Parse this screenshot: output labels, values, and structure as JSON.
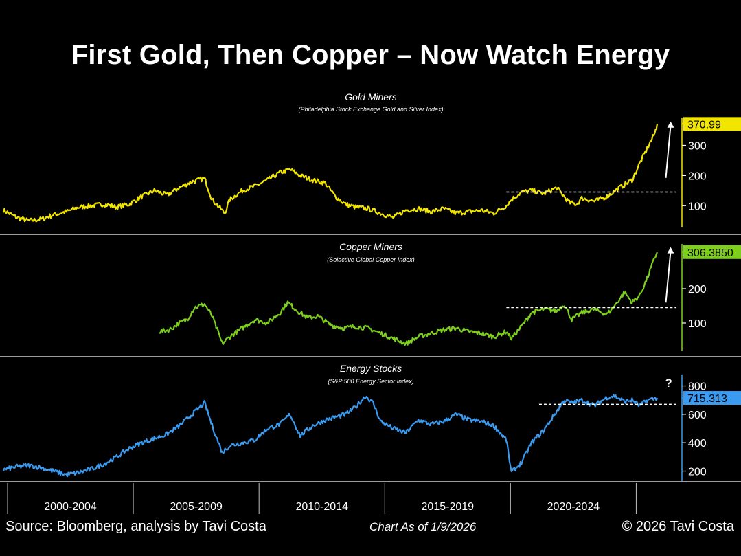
{
  "title": "First Gold, Then Copper – Now Watch Energy",
  "footer": {
    "source": "Source: Bloomberg, analysis by Tavi Costa",
    "as_of": "Chart As of 1/9/2026",
    "copyright": "© 2026 Tavi Costa"
  },
  "x_axis_labels": [
    "2000-2004",
    "2005-2009",
    "2010-2014",
    "2015-2019",
    "2020-2024"
  ],
  "colors": {
    "background": "#000000",
    "gold": "#f2e600",
    "copper": "#7ccf1a",
    "energy": "#3a9bf0",
    "dash": "#ffffff",
    "axis": "#ffffff"
  },
  "chart_data": [
    {
      "type": "line",
      "title": "Gold Miners",
      "subtitle": "(Philadelphia Stock Exchange Gold and Silver Index)",
      "ylim": [
        30,
        390
      ],
      "yticks": [
        100,
        200,
        300
      ],
      "last_value_label": "370.99",
      "last_value": 370.99,
      "reference_level": 145,
      "reference_start_year": 2020.0,
      "annotation": "up-arrow",
      "series": [
        {
          "name": "Gold Miners",
          "x": [
            2000,
            2000.5,
            2001,
            2001.5,
            2002,
            2002.5,
            2003,
            2003.5,
            2004,
            2004.5,
            2005,
            2005.5,
            2006,
            2006.5,
            2007,
            2007.5,
            2008,
            2008.3,
            2008.8,
            2009,
            2009.5,
            2010,
            2010.5,
            2011,
            2011.4,
            2011.8,
            2012.3,
            2012.8,
            2013.2,
            2013.6,
            2014,
            2014.5,
            2015,
            2015.5,
            2016,
            2016.5,
            2017,
            2017.5,
            2018,
            2018.5,
            2019,
            2019.5,
            2020,
            2020.2,
            2020.6,
            2021,
            2021.5,
            2022,
            2022.5,
            2022.8,
            2023,
            2023.5,
            2024,
            2024.5,
            2025,
            2025.3,
            2025.6,
            2025.9,
            2026
          ],
          "values": [
            85,
            62,
            50,
            55,
            70,
            80,
            95,
            100,
            105,
            95,
            105,
            130,
            150,
            135,
            160,
            180,
            190,
            120,
            75,
            120,
            150,
            165,
            185,
            210,
            220,
            200,
            185,
            175,
            130,
            105,
            95,
            90,
            75,
            60,
            85,
            90,
            80,
            90,
            75,
            80,
            85,
            75,
            100,
            120,
            145,
            150,
            140,
            160,
            110,
            105,
            125,
            115,
            130,
            160,
            185,
            240,
            290,
            340,
            371
          ]
        }
      ]
    },
    {
      "type": "line",
      "title": "Copper Miners",
      "subtitle": "(Solactive Global Copper Index)",
      "ylim": [
        20,
        330
      ],
      "yticks": [
        100,
        200
      ],
      "last_value_label": "306.3850",
      "last_value": 306.385,
      "reference_level": 145,
      "reference_start_year": 2020.0,
      "annotation": "up-arrow",
      "series": [
        {
          "name": "Copper Miners",
          "x": [
            2006.2,
            2006.6,
            2007,
            2007.3,
            2007.6,
            2008,
            2008.3,
            2008.7,
            2009,
            2009.5,
            2010,
            2010.5,
            2011,
            2011.3,
            2011.7,
            2012.1,
            2012.5,
            2013,
            2013.5,
            2014,
            2014.5,
            2015,
            2015.5,
            2016,
            2016.5,
            2017,
            2017.5,
            2018,
            2018.5,
            2019,
            2019.5,
            2020,
            2020.2,
            2020.6,
            2021,
            2021.5,
            2022,
            2022.3,
            2022.6,
            2023,
            2023.5,
            2024,
            2024.3,
            2024.7,
            2025,
            2025.3,
            2025.6,
            2025.9,
            2026
          ],
          "values": [
            75,
            80,
            100,
            110,
            145,
            155,
            120,
            40,
            60,
            85,
            110,
            100,
            130,
            160,
            135,
            115,
            120,
            95,
            85,
            90,
            85,
            70,
            55,
            40,
            60,
            70,
            80,
            85,
            75,
            70,
            60,
            75,
            55,
            90,
            130,
            140,
            135,
            155,
            110,
            130,
            140,
            125,
            150,
            190,
            160,
            180,
            230,
            290,
            306
          ]
        }
      ]
    },
    {
      "type": "line",
      "title": "Energy Stocks",
      "subtitle": "(S&P 500 Energy Sector Index)",
      "ylim": [
        130,
        880
      ],
      "yticks": [
        200,
        400,
        600,
        800
      ],
      "last_value_label": "715.313",
      "last_value": 715.313,
      "reference_level": 670,
      "reference_start_year": 2021.3,
      "annotation": "?",
      "series": [
        {
          "name": "Energy Stocks",
          "x": [
            2000,
            2000.5,
            2001,
            2001.5,
            2002,
            2002.5,
            2003,
            2003.5,
            2004,
            2004.5,
            2005,
            2005.5,
            2006,
            2006.5,
            2007,
            2007.5,
            2008,
            2008.3,
            2008.7,
            2009,
            2009.5,
            2010,
            2010.5,
            2011,
            2011.4,
            2011.8,
            2012.3,
            2012.8,
            2013.2,
            2013.6,
            2014,
            2014.4,
            2014.7,
            2015,
            2015.5,
            2016,
            2016.5,
            2017,
            2017.5,
            2018,
            2018.5,
            2019,
            2019.5,
            2020,
            2020.2,
            2020.6,
            2021,
            2021.5,
            2022,
            2022.3,
            2022.6,
            2023,
            2023.5,
            2024,
            2024.3,
            2024.7,
            2025,
            2025.3,
            2025.6,
            2026
          ],
          "values": [
            210,
            230,
            240,
            225,
            200,
            175,
            190,
            215,
            250,
            300,
            360,
            400,
            430,
            460,
            520,
            600,
            680,
            520,
            330,
            380,
            400,
            420,
            500,
            530,
            600,
            450,
            520,
            560,
            580,
            600,
            650,
            730,
            680,
            550,
            500,
            470,
            560,
            530,
            550,
            600,
            560,
            550,
            520,
            420,
            190,
            260,
            400,
            490,
            620,
            700,
            680,
            700,
            660,
            720,
            730,
            690,
            700,
            660,
            700,
            715
          ]
        }
      ]
    }
  ],
  "x_range": [
    2000,
    2026.9
  ]
}
